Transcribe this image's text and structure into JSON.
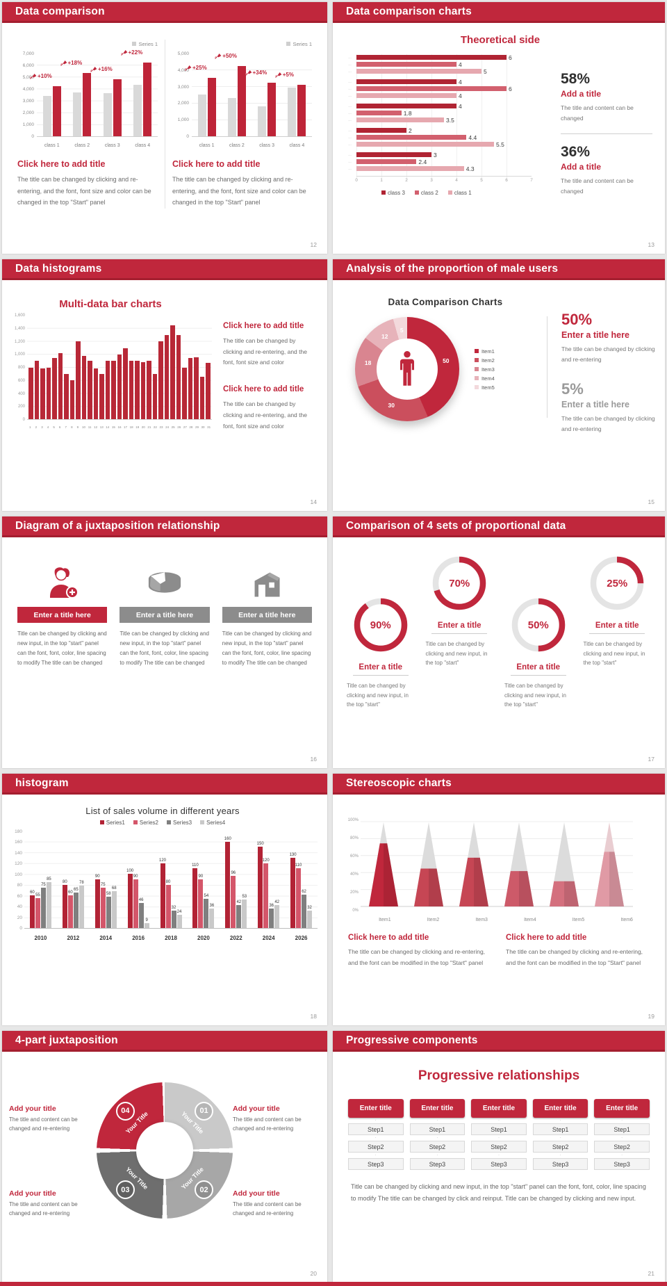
{
  "page": {
    "background": "#e7e7e7",
    "accent": "#c0273c",
    "footer_bar_color": "#c0273c"
  },
  "slides": {
    "data_comparison": {
      "header": "Data comparison",
      "page_num": "12",
      "columns": [
        {
          "chart": {
            "type": "bar",
            "legend": "Series 1",
            "y_ticks": [
              "7,000",
              "6,000",
              "5,000",
              "4,000",
              "3,000",
              "2,000",
              "1,000",
              "0"
            ],
            "y_max": 7000,
            "categories": [
              "class 1",
              "class 2",
              "class 3",
              "class 4"
            ],
            "series_gray": [
              3400,
              3700,
              3600,
              4300
            ],
            "series_red": [
              4200,
              5300,
              4800,
              6200
            ],
            "badges": [
              "+10%",
              "+18%",
              "+16%",
              "+22%"
            ]
          },
          "title": "Click here to add title",
          "body": "The title can be changed by clicking and re-entering, and the font, font size and color can be changed in the top \"Start\" panel"
        },
        {
          "chart": {
            "type": "bar",
            "legend": "Series 1",
            "y_ticks": [
              "5,000",
              "4,000",
              "3,000",
              "2,000",
              "1,000",
              "0"
            ],
            "y_max": 5000,
            "categories": [
              "class 1",
              "class 2",
              "class 3",
              "class 4"
            ],
            "series_gray": [
              2500,
              2300,
              1800,
              2900
            ],
            "series_red": [
              3500,
              4200,
              3200,
              3100
            ],
            "badges": [
              "+25%",
              "+50%",
              "+34%",
              "+5%"
            ]
          },
          "title": "Click here to add title",
          "body": "The title can be changed by clicking and re-entering, and the font, font size and color can be changed in the top \"Start\" panel"
        }
      ]
    },
    "data_comparison_charts": {
      "header": "Data comparison charts",
      "page_num": "13",
      "chart_title": "Theoretical side",
      "chart": {
        "type": "bar-horizontal",
        "x_ticks": [
          "0",
          "1",
          "2",
          "3",
          "4",
          "5",
          "6",
          "7"
        ],
        "x_max": 7,
        "legend": [
          "class 3",
          "class 2",
          "class 1"
        ],
        "colors": [
          "#b02433",
          "#d2606e",
          "#e6a8af"
        ],
        "row_tick": "…",
        "groups": [
          [
            6,
            4,
            5
          ],
          [
            4,
            6,
            4
          ],
          [
            4,
            1.8,
            3.5
          ],
          [
            2,
            4.4,
            5.5
          ],
          [
            3,
            2.4,
            4.3
          ]
        ],
        "labels": [
          [
            "6",
            "4",
            "5"
          ],
          [
            "4",
            "6",
            "4"
          ],
          [
            "4",
            "1.8",
            "3.5"
          ],
          [
            "2",
            "4.4",
            "5.5"
          ],
          [
            "3",
            "2.4",
            "4.3"
          ]
        ]
      },
      "stats": [
        {
          "pct": "58%",
          "title": "Add a title",
          "body": "The title and content can be changed"
        },
        {
          "pct": "36%",
          "title": "Add a title",
          "body": "The title and content can be changed"
        }
      ]
    },
    "data_histograms": {
      "header": "Data histograms",
      "page_num": "14",
      "chart_title": "Multi-data bar charts",
      "chart": {
        "type": "bar",
        "y_ticks": [
          "1,600",
          "1,400",
          "1,200",
          "1,000",
          "800",
          "600",
          "400",
          "200",
          "0"
        ],
        "y_max": 1600,
        "x_labels": [
          "1",
          "2",
          "3",
          "4",
          "5",
          "6",
          "7",
          "8",
          "9",
          "10",
          "11",
          "12",
          "13",
          "14",
          "15",
          "16",
          "17",
          "18",
          "19",
          "20",
          "21",
          "22",
          "23",
          "24",
          "25",
          "26",
          "27",
          "28",
          "29",
          "30",
          "31"
        ],
        "values": [
          800,
          900,
          780,
          800,
          950,
          1020,
          700,
          600,
          1200,
          980,
          900,
          780,
          700,
          900,
          900,
          1000,
          1100,
          900,
          900,
          880,
          900,
          700,
          1200,
          1300,
          1450,
          1300,
          800,
          950,
          960,
          650,
          870
        ],
        "bar_color": "#b82837"
      },
      "blocks": [
        {
          "title": "Click here to add title",
          "body": "The title can be changed by clicking and re-entering, and the font, font size and color"
        },
        {
          "title": "Click here to add title",
          "body": "The title can be changed by clicking and re-entering, and the font, font size and color"
        }
      ]
    },
    "male_users": {
      "header": "Analysis of the proportion of male users",
      "page_num": "15",
      "chart_title": "Data Comparison Charts",
      "donut": {
        "type": "pie",
        "values": [
          50,
          30,
          18,
          12,
          5
        ],
        "labels": [
          "50",
          "30",
          "18",
          "12",
          "5"
        ],
        "colors": [
          "#c0273c",
          "#cb4f5d",
          "#d98590",
          "#e7b3ba",
          "#f3d9dc"
        ],
        "legend": [
          "Item1",
          "Item2",
          "Item3",
          "Item4",
          "Item5"
        ],
        "center_icon": "male-person-icon"
      },
      "stats": [
        {
          "pct": "50%",
          "title": "Enter a title here",
          "body": "The title can be changed by clicking and re-entering"
        },
        {
          "pct": "5%",
          "title": "Enter a title here",
          "body": "The title can be changed by clicking and re-entering"
        }
      ]
    },
    "juxtaposition": {
      "header": "Diagram of a juxtaposition relationship",
      "page_num": "16",
      "items": [
        {
          "icon": "person-plus-icon",
          "bar_color": "#c0273c",
          "title": "Enter a title here",
          "body": "Title can be changed by clicking and new input, in the top \"start\" panel can the font, font, color, line spacing to modify The title can be changed"
        },
        {
          "icon": "cheese-wheel-icon",
          "bar_color": "#8c8c8c",
          "title": "Enter a title here",
          "body": "Title can be changed by clicking and new input, in the top \"start\" panel can the font, font, color, line spacing to modify The title can be changed"
        },
        {
          "icon": "building-icon",
          "bar_color": "#8c8c8c",
          "title": "Enter a title here",
          "body": "Title can be changed by clicking and new input, in the top \"start\" panel can the font, font, color, line spacing to modify The title can be changed"
        }
      ]
    },
    "proportional": {
      "header": "Comparison of 4 sets of proportional data",
      "page_num": "17",
      "gauges": [
        {
          "pct": 90,
          "label": "90%",
          "raised": false,
          "title": "Enter a title",
          "body": "Title can be changed by clicking and new input, in the top \"start\""
        },
        {
          "pct": 70,
          "label": "70%",
          "raised": true,
          "title": "Enter a title",
          "body": "Title can be changed by clicking and new input, in the top \"start\""
        },
        {
          "pct": 50,
          "label": "50%",
          "raised": false,
          "title": "Enter a title",
          "body": "Title can be changed by clicking and new input, in the top \"start\""
        },
        {
          "pct": 25,
          "label": "25%",
          "raised": true,
          "title": "Enter a title",
          "body": "Title can be changed by clicking and new input, in the top \"start\""
        }
      ]
    },
    "histogram": {
      "header": "histogram",
      "page_num": "18",
      "chart_title": "List of sales volume in different years",
      "chart": {
        "type": "bar",
        "legend": [
          "Series1",
          "Series2",
          "Series3",
          "Series4"
        ],
        "colors": [
          "#b22335",
          "#d4566a",
          "#7f7f7f",
          "#c9c9c9"
        ],
        "y_ticks": [
          "180",
          "160",
          "140",
          "120",
          "100",
          "80",
          "60",
          "40",
          "20",
          "0"
        ],
        "y_max": 180,
        "categories": [
          "2010",
          "2012",
          "2014",
          "2016",
          "2018",
          "2020",
          "2022",
          "2024",
          "2026"
        ],
        "series": [
          {
            "name": "Series1",
            "values": [
              60,
              80,
              90,
              100,
              120,
              110,
              160,
              150,
              130
            ]
          },
          {
            "name": "Series2",
            "values": [
              55,
              60,
              75,
              90,
              80,
              90,
              96,
              120,
              110
            ]
          },
          {
            "name": "Series3",
            "values": [
              75,
              65,
              58,
              46,
              32,
              54,
              42,
              36,
              62
            ]
          },
          {
            "name": "Series4",
            "values": [
              85,
              78,
              68,
              9,
              24,
              36,
              53,
              42,
              32
            ]
          }
        ]
      }
    },
    "stereoscopic": {
      "header": "Stereoscopic charts",
      "page_num": "19",
      "chart": {
        "type": "cone",
        "y_ticks": [
          "100%",
          "80%",
          "60%",
          "40%",
          "20%",
          "0%"
        ],
        "categories": [
          "Item1",
          "Item2",
          "Item3",
          "Item4",
          "Item5",
          "Item6"
        ],
        "fill_pct": [
          75,
          45,
          58,
          42,
          30,
          65
        ],
        "fill_colors": [
          "#c0273c",
          "#c64654",
          "#c64654",
          "#cd5a69",
          "#d4707e",
          "#e09aa5"
        ],
        "cone_colors": [
          "#dcdcdc",
          "#dcdcdc",
          "#dcdcdc",
          "#dcdcdc",
          "#dcdcdc",
          "#e9cdd1"
        ]
      },
      "blocks": [
        {
          "title": "Click here to add title",
          "body": "The title can be changed by clicking and re-entering, and the font can be modified in the top \"Start\" panel"
        },
        {
          "title": "Click here to add title",
          "body": "The title can be changed by clicking and re-entering, and the font can be modified in the top \"Start\" panel"
        }
      ]
    },
    "four_part": {
      "header": "4-part juxtaposition",
      "page_num": "20",
      "ring": {
        "segment_label": "Your Title",
        "numbers": [
          "01",
          "02",
          "03",
          "04"
        ],
        "segment_colors": [
          "#c9c9c9",
          "#a7a7a7",
          "#6e6e6e",
          "#c0273c"
        ],
        "number_colors": [
          "#b5b5b5",
          "#8f8f8f",
          "#5f5f5f",
          "#c0273c"
        ]
      },
      "blocks": [
        {
          "title": "Add your title",
          "body": "The title and content can be changed and re-entering"
        },
        {
          "title": "Add your title",
          "body": "The title and content can be changed and re-entering"
        },
        {
          "title": "Add your title",
          "body": "The title and content can be changed and re-entering"
        },
        {
          "title": "Add your title",
          "body": "The title and content can be changed and re-entering"
        }
      ]
    },
    "progressive": {
      "header": "Progressive components",
      "page_num": "21",
      "title": "Progressive relationships",
      "button_label": "Enter title",
      "columns": 5,
      "steps": [
        "Step1",
        "Step2",
        "Step3"
      ],
      "body": "Title can be changed by clicking and new input, in the top \"start\" panel can the font, font, color, line spacing to modify The title can be changed by click and reinput. Title can be changed by clicking and new input."
    }
  }
}
